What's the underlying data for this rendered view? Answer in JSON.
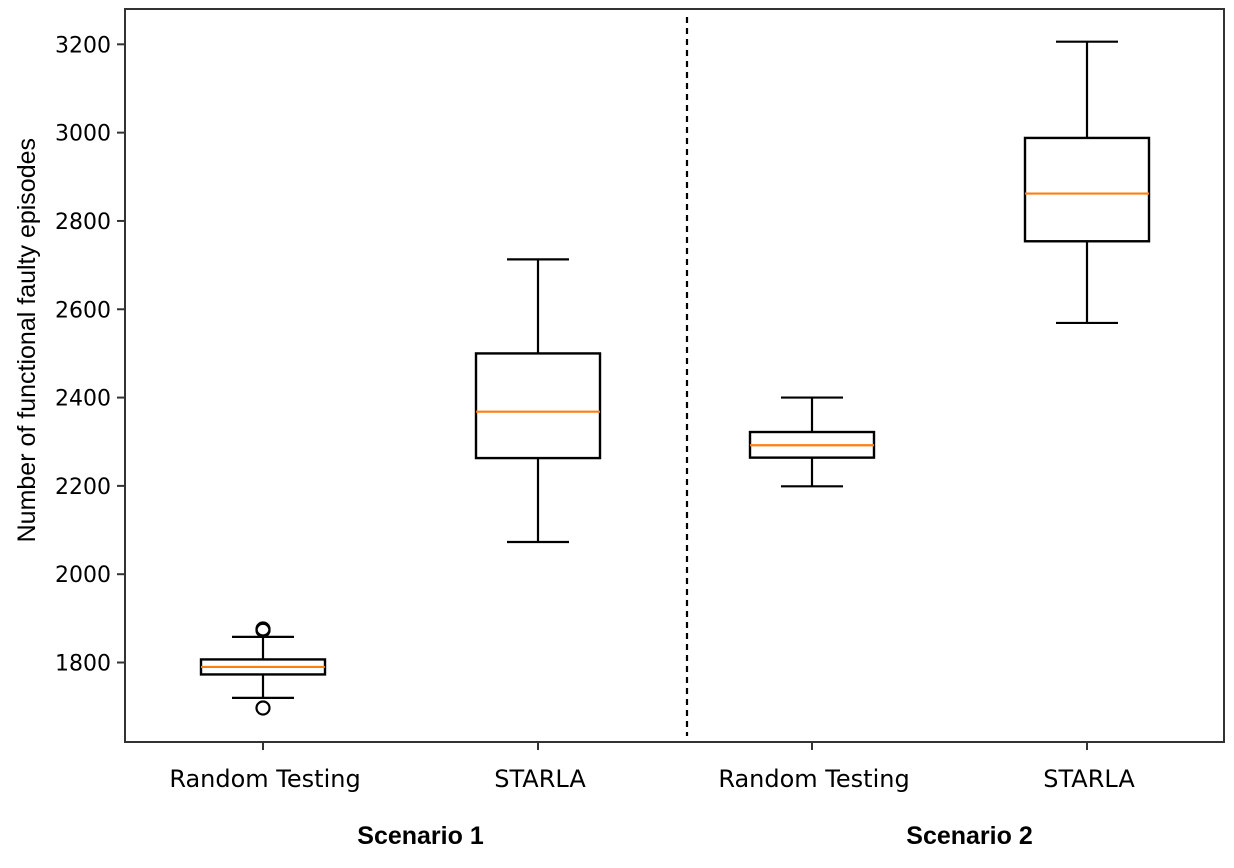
{
  "chart_data": {
    "type": "box",
    "title": "",
    "xlabel": "",
    "ylabel": "Number of functional faulty episodes",
    "ylim": [
      1620,
      3280
    ],
    "yticks": [
      1800,
      2000,
      2200,
      2400,
      2600,
      2800,
      3000,
      3200
    ],
    "grid": false,
    "categories": [
      "Random Testing",
      "STARLA",
      "Random Testing",
      "STARLA"
    ],
    "groups": [
      {
        "label": "Scenario 1",
        "categories": [
          0,
          1
        ]
      },
      {
        "label": "Scenario 2",
        "categories": [
          2,
          3
        ]
      }
    ],
    "boxes": [
      {
        "whisker_low": 1720,
        "q1": 1773,
        "median": 1790,
        "q3": 1807,
        "whisker_high": 1858,
        "outliers": [
          1697,
          1873,
          1876
        ]
      },
      {
        "whisker_low": 2073,
        "q1": 2263,
        "median": 2368,
        "q3": 2500,
        "whisker_high": 2713
      },
      {
        "whisker_low": 2199,
        "q1": 2264,
        "median": 2292,
        "q3": 2322,
        "whisker_high": 2400
      },
      {
        "whisker_low": 2569,
        "q1": 2754,
        "median": 2862,
        "q3": 2988,
        "whisker_high": 3206
      }
    ],
    "separator": "dashed vertical line between Scenario 1 and Scenario 2",
    "colors": {
      "box": "#000000",
      "median": "#ff7f0e",
      "separator": "#000000"
    }
  }
}
